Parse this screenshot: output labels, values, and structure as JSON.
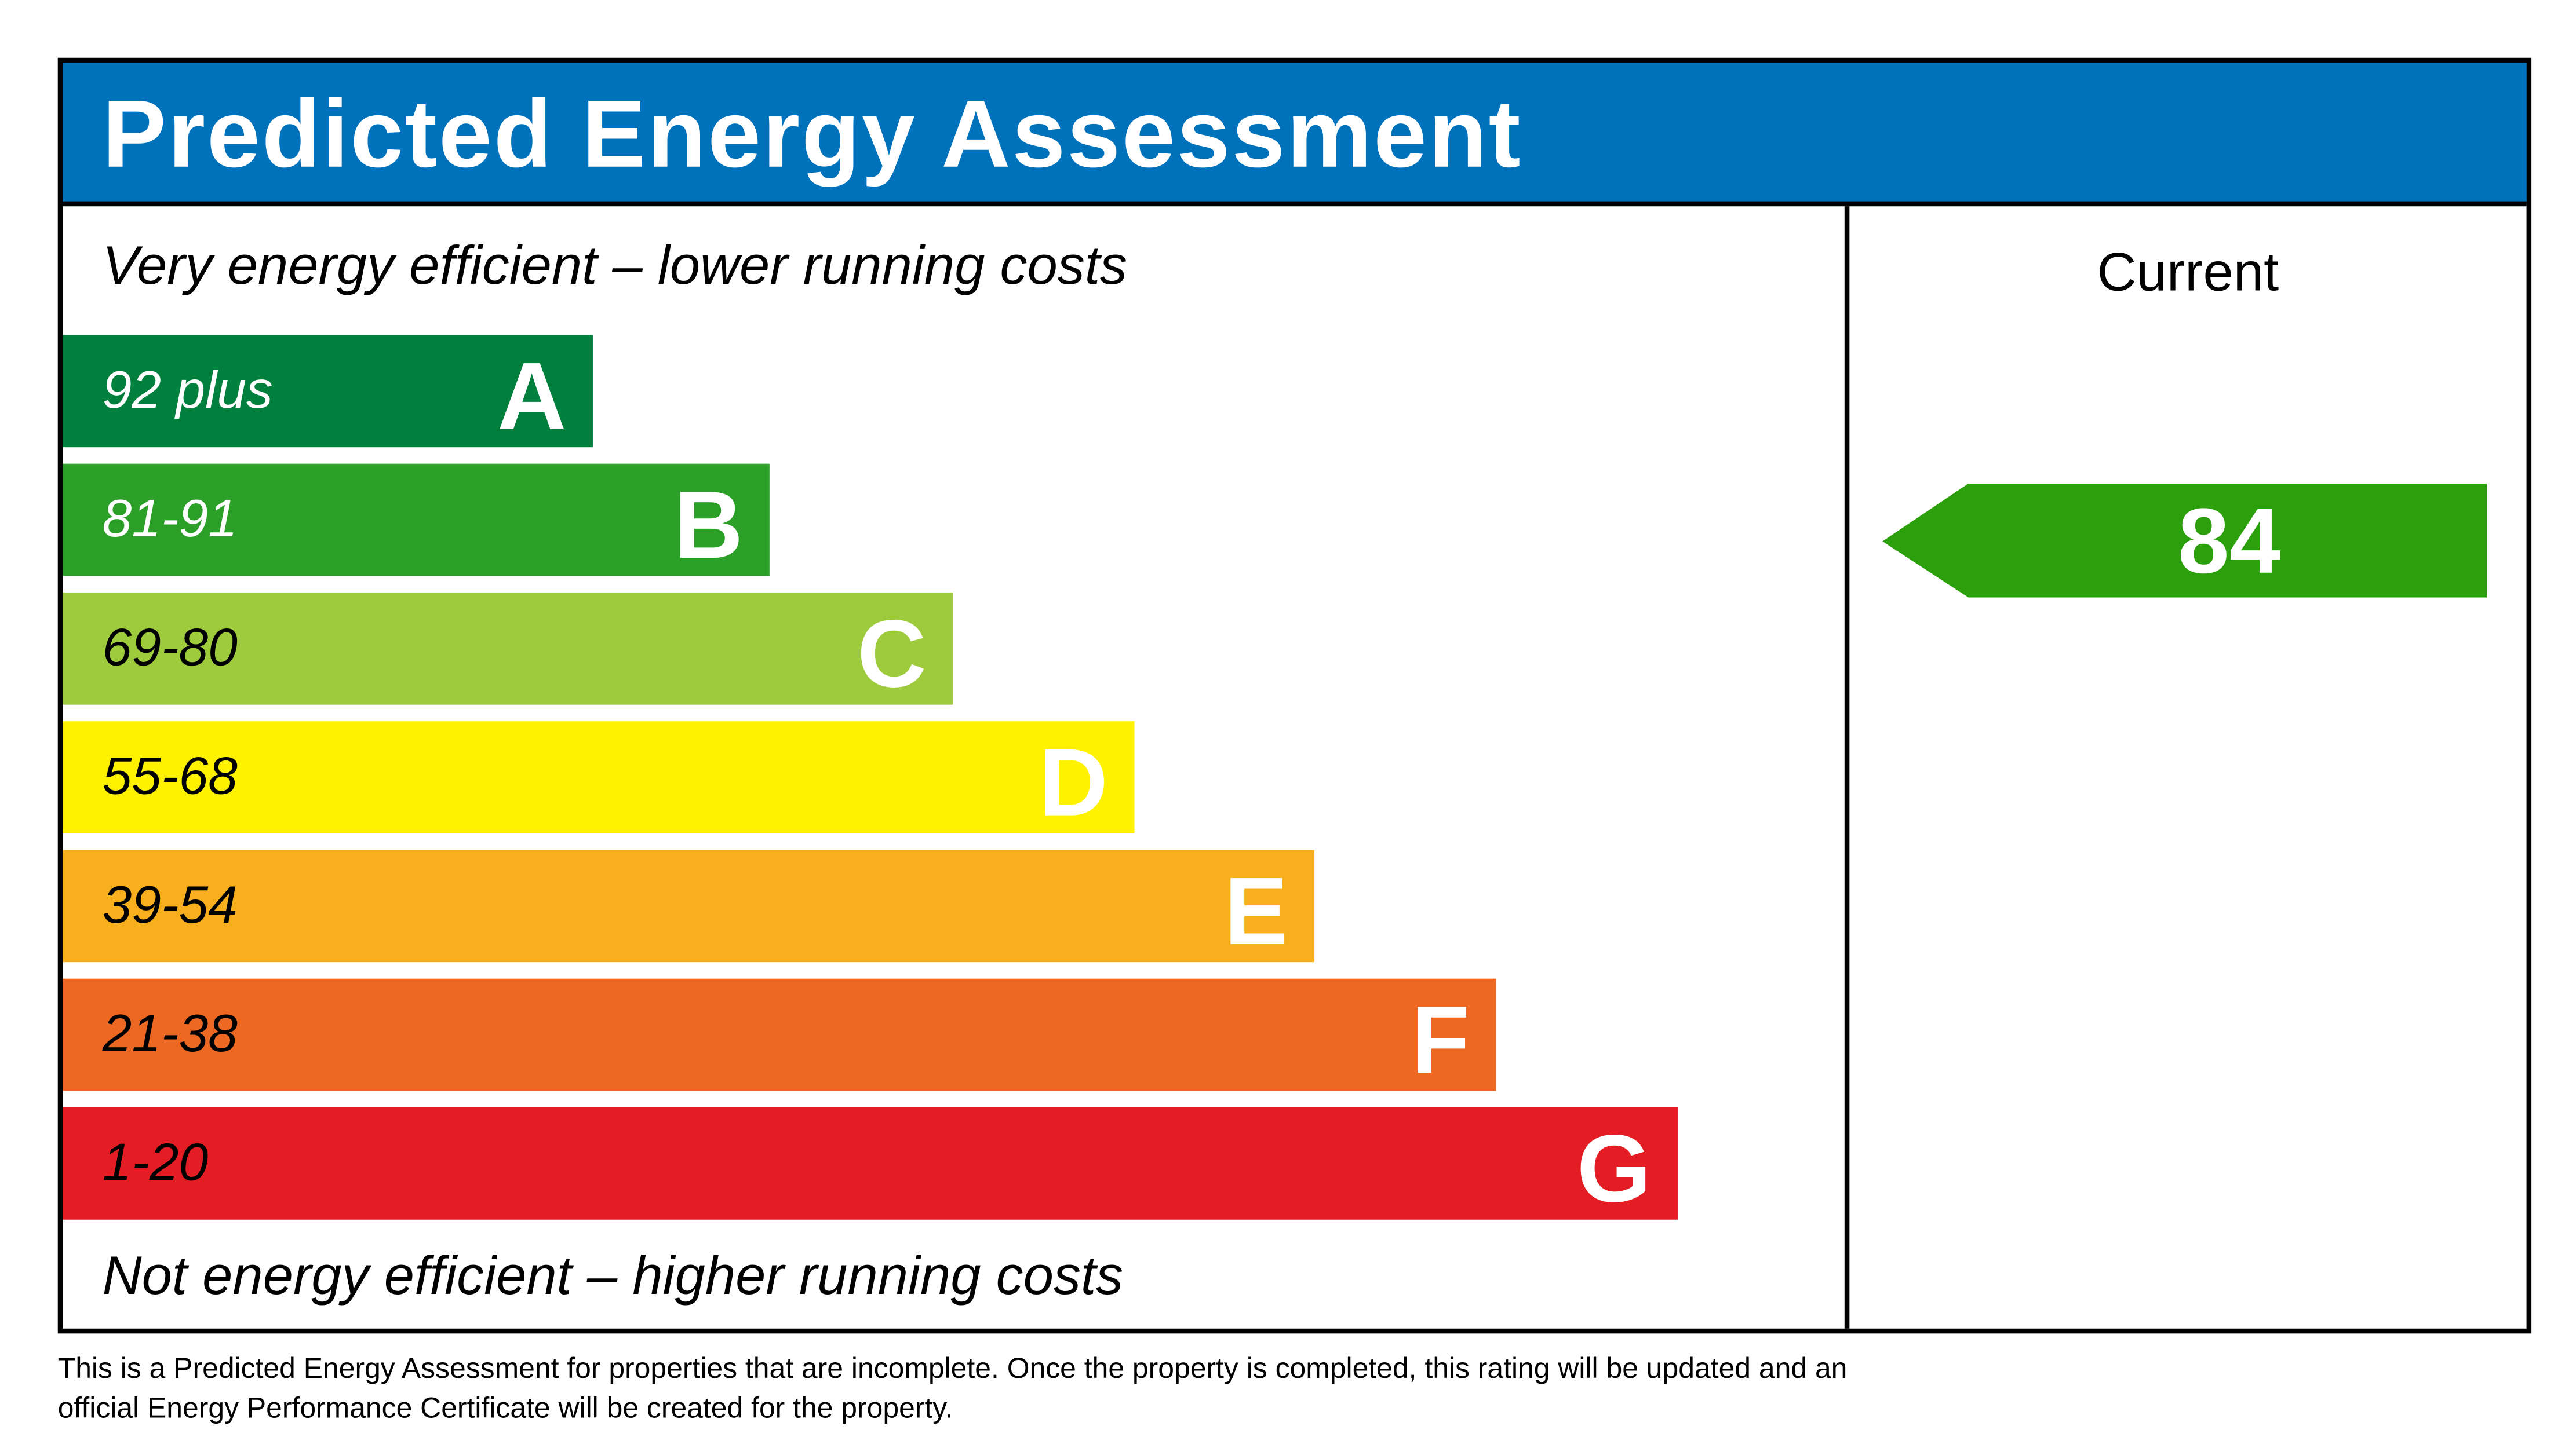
{
  "chart_data": {
    "type": "bar",
    "title": "Predicted Energy Assessment",
    "top_label": "Very energy efficient – lower running costs",
    "bottom_label": "Not energy efficient – higher running costs",
    "column_header": "Current",
    "bands": [
      {
        "range": "92 plus",
        "letter": "A",
        "color": "#007f3d",
        "text_color": "#ffffff"
      },
      {
        "range": "81-91",
        "letter": "B",
        "color": "#2c9f29",
        "text_color": "#ffffff"
      },
      {
        "range": "69-80",
        "letter": "C",
        "color": "#9dcb3c",
        "text_color": "#000000"
      },
      {
        "range": "55-68",
        "letter": "D",
        "color": "#fff200",
        "text_color": "#000000"
      },
      {
        "range": "39-54",
        "letter": "E",
        "color": "#f7af1d",
        "text_color": "#000000"
      },
      {
        "range": "21-38",
        "letter": "F",
        "color": "#ed6823",
        "text_color": "#000000"
      },
      {
        "range": "1-20",
        "letter": "G",
        "color": "#e31d23",
        "text_color": "#000000"
      }
    ],
    "current": {
      "value": 84,
      "band": "B",
      "color": "#2ca00c"
    }
  },
  "header_color": "#0072bc",
  "footnote_line1": "This is a Predicted Energy Assessment for properties that are incomplete. Once the property is completed, this rating will be updated and an",
  "footnote_line2": "official Energy Performance Certificate will be created for the property."
}
